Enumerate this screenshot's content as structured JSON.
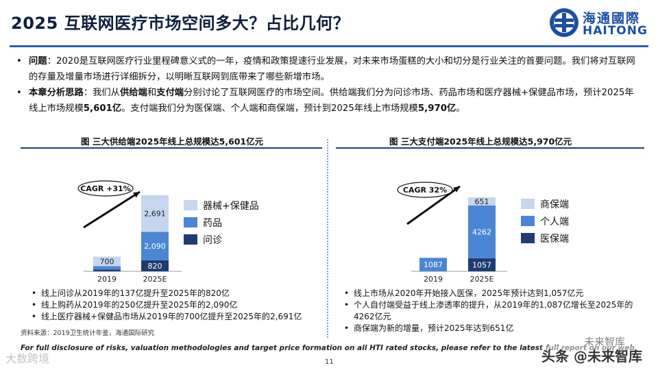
{
  "header": {
    "title": "2025 互联网医疗市场空间多大？占比几何？",
    "logo_cn": "海通國際",
    "logo_en": "HAITONG"
  },
  "bullets": [
    {
      "label": "问题",
      "text": "：2020是互联网医疗行业里程碑意义式的一年，疫情和政策提速行业发展，对未来市场蛋糕的大小和切分是行业关注的首要问题。我们将对互联网的存量及增量市场进行详细拆分，以明晰互联网到底带来了哪些新增市场。"
    },
    {
      "label": "本章分析思路",
      "p1": "：我们从",
      "b1": "供给端",
      "p2": "和",
      "b2": "支付端",
      "p3": "分别讨论了互联网医疗的市场空间。供给端我们分为问诊市场、药品市场和医疗器械+保健品市场，预计2025年线上市场规模",
      "b3": "5,601亿",
      "p4": "。支付端我们分为医保端、个人端和商保端，预计到2025年线上市场规模",
      "b4": "5,970亿",
      "p5": "。"
    }
  ],
  "left_chart": {
    "title": "图 三大供给端2025年线上总规模达5,601亿元",
    "cagr": "CAGR +31%",
    "legend": [
      "器械+保健品",
      "药品",
      "问诊"
    ],
    "notes": [
      "线上问诊从2019年的137亿提升至2025年的820亿",
      "线上购药从2019年的250亿提升至2025年的2,090亿",
      "线上医疗器械+保健品市场从2019年的700亿提升至2025年的2,691亿"
    ]
  },
  "right_chart": {
    "title": "图 三大支付端2025年线上总规模达5,970亿元",
    "cagr": "CAGR 32%",
    "legend": [
      "商保端",
      "个人端",
      "医保端"
    ],
    "notes": [
      "线上市场从2020年开始接入医保，2025年预计达到1,057亿元",
      "个人自付端受益于线上渗透率的提升，从2019年的1,087亿增长至2025年的4262亿元",
      "商保端为新的增量，预计2025年达到651亿"
    ]
  },
  "chart_data": [
    {
      "type": "bar",
      "stacked": true,
      "title": "图 三大供给端2025年线上总规模达5,601亿元",
      "categories": [
        "2019",
        "2025E"
      ],
      "series": [
        {
          "name": "问诊",
          "values": [
            137,
            820
          ],
          "labels": [
            "",
            "820"
          ],
          "color": "#1f3d73"
        },
        {
          "name": "药品",
          "values": [
            250,
            2090
          ],
          "labels": [
            "",
            "2,090"
          ],
          "color": "#4a86d4"
        },
        {
          "name": "器械+保健品",
          "values": [
            700,
            2691
          ],
          "labels": [
            "700",
            "2,691"
          ],
          "color": "#c6d6ee"
        }
      ],
      "annotation": "CAGR +31%",
      "legend_position": "right"
    },
    {
      "type": "bar",
      "stacked": true,
      "title": "图 三大支付端2025年线上总规模达5,970亿元",
      "categories": [
        "2019",
        "2025E"
      ],
      "series": [
        {
          "name": "医保端",
          "values": [
            0,
            1057
          ],
          "labels": [
            "",
            "1057"
          ],
          "color": "#1f3d73"
        },
        {
          "name": "个人端",
          "values": [
            1087,
            4262
          ],
          "labels": [
            "1087",
            "4262"
          ],
          "color": "#4a86d4"
        },
        {
          "name": "商保端",
          "values": [
            0,
            651
          ],
          "labels": [
            "",
            "651"
          ],
          "color": "#c6d6ee"
        }
      ],
      "annotation": "CAGR 32%",
      "legend_position": "right"
    }
  ],
  "footer": {
    "source": "资料来源：2019卫生统计年鉴，海通国际研究",
    "disclaimer": "For full disclosure of risks, valuation methodologies and target price formation on all HTI rated stocks, please refer to the latest full report on our web",
    "page": "11",
    "watermark_top": "未来智库",
    "watermark_main": "头条 @未来智库",
    "watermark_left": "大数跨境"
  }
}
